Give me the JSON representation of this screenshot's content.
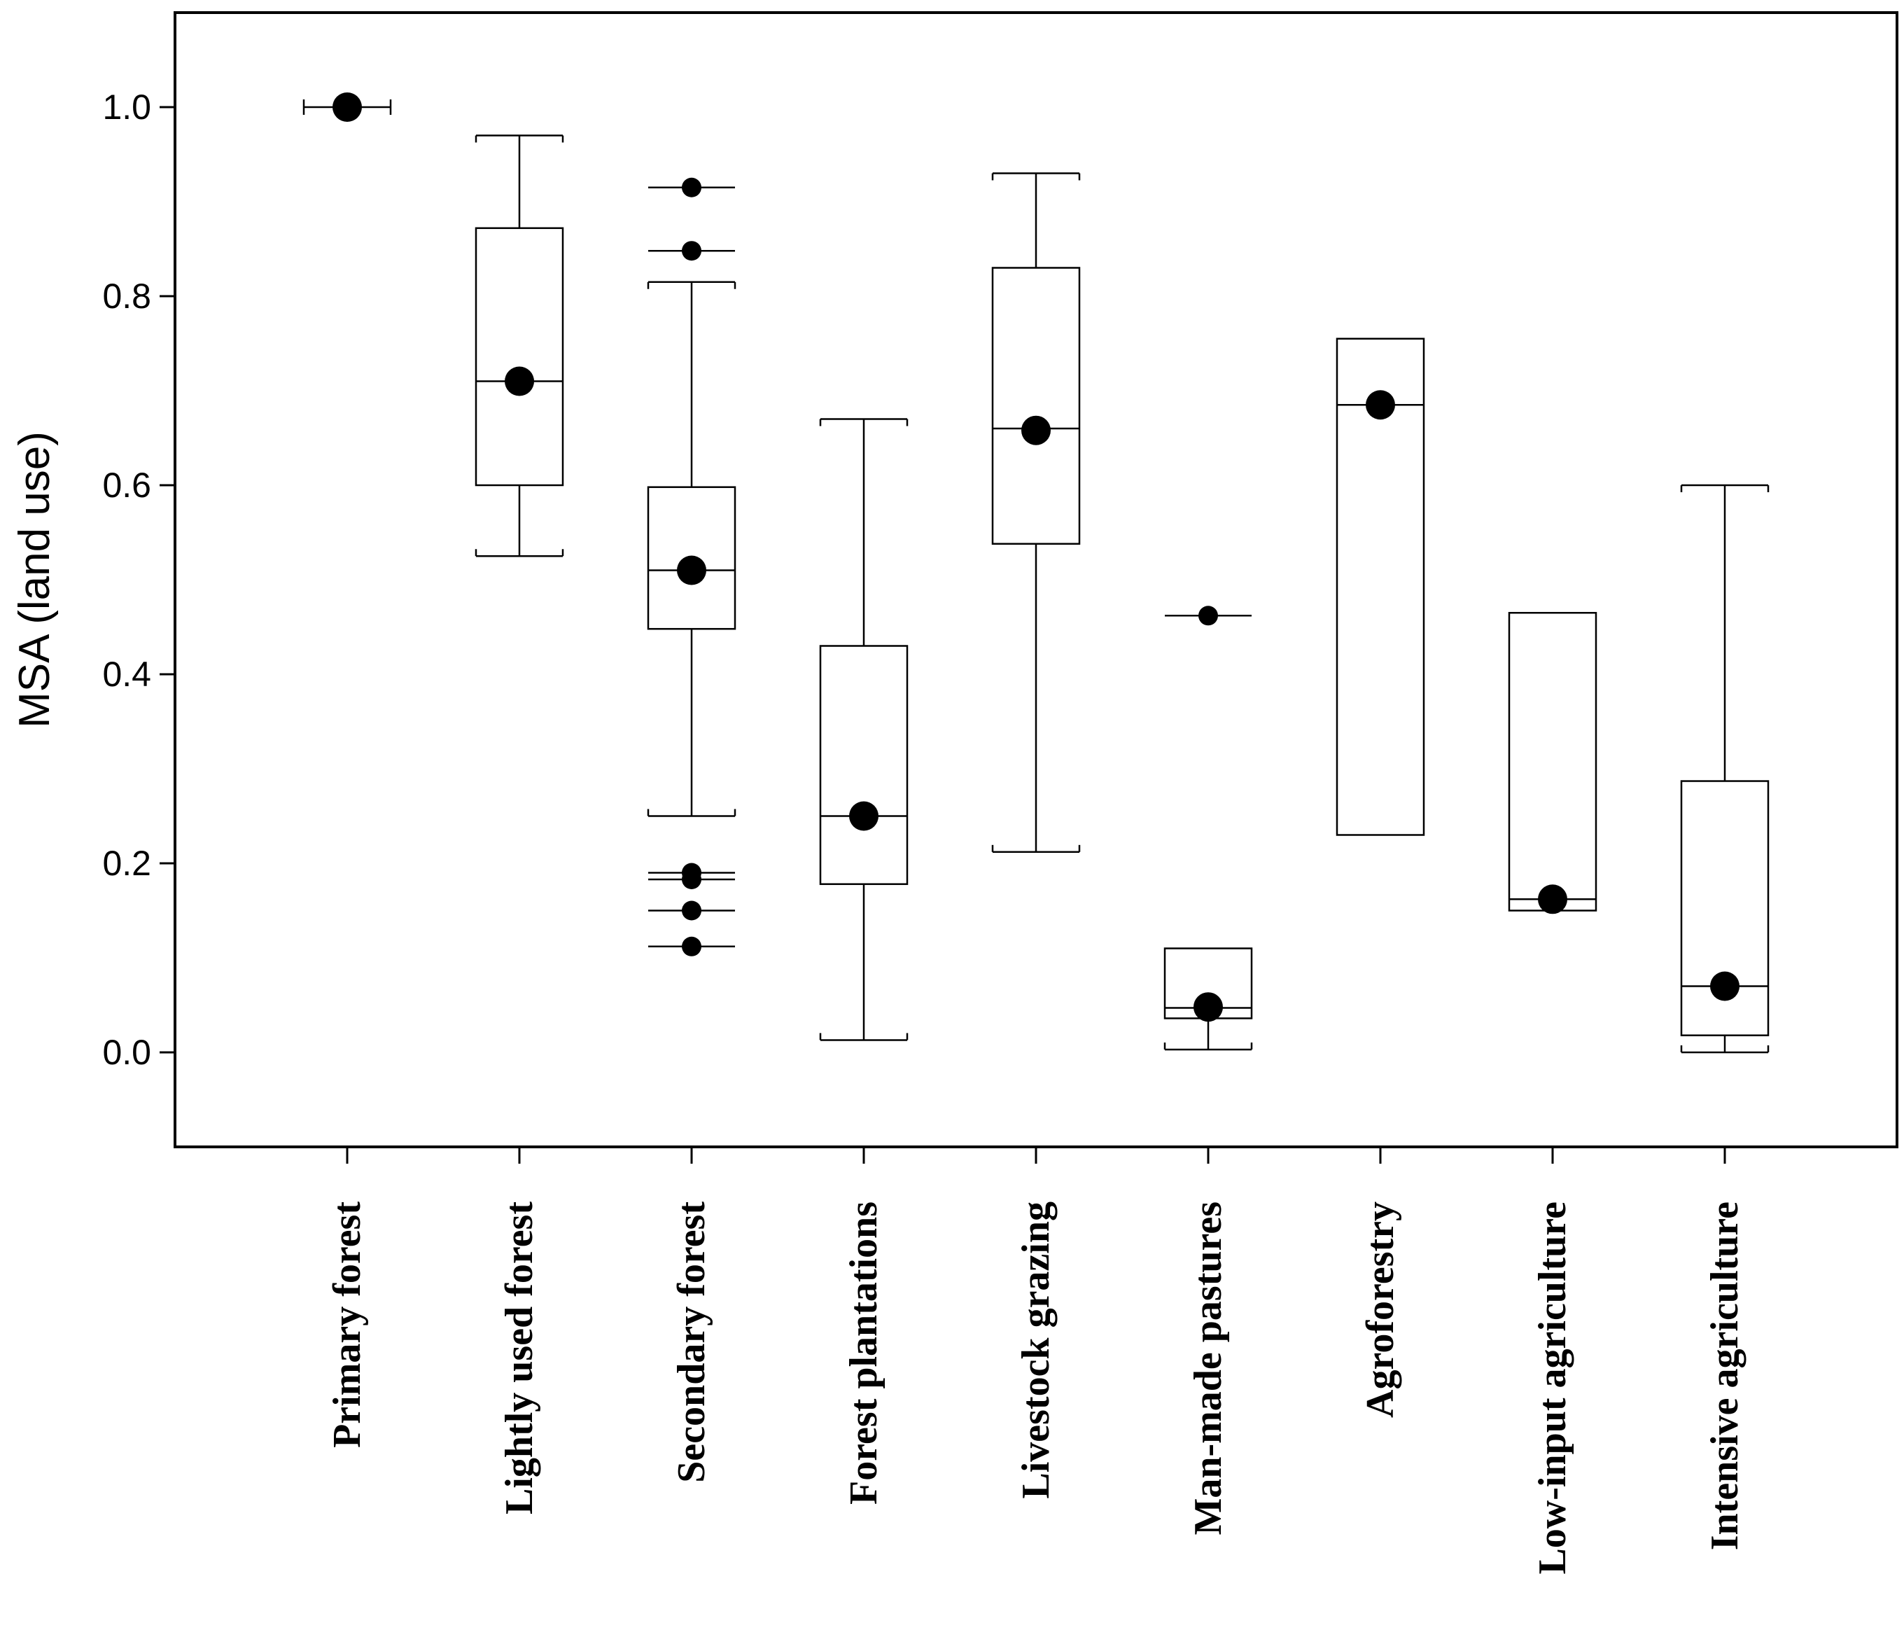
{
  "chart_data": {
    "type": "boxplot",
    "title": "",
    "xlabel": "",
    "ylabel": "MSA (land use)",
    "ylim": [
      -0.1,
      1.1
    ],
    "yticks": [
      0.0,
      0.2,
      0.4,
      0.6,
      0.8,
      1.0
    ],
    "ytick_labels": [
      "0.0",
      "0.2",
      "0.4",
      "0.6",
      "0.8",
      "1.0"
    ],
    "grid": false,
    "categories": [
      "Primary forest",
      "Lightly used forest",
      "Secondary forest",
      "Forest plantations",
      "Livestock grazing",
      "Man-made pastures",
      "Agroforestry",
      "Low-input agriculture",
      "Intensive agriculture"
    ],
    "boxes": [
      {
        "category": "Primary forest",
        "whisker_low": 1.0,
        "q1": 1.0,
        "median": 1.0,
        "q3": 1.0,
        "whisker_high": 1.0,
        "mean": 1.0,
        "outliers": []
      },
      {
        "category": "Lightly used forest",
        "whisker_low": 0.525,
        "q1": 0.6,
        "median": 0.71,
        "q3": 0.872,
        "whisker_high": 0.97,
        "mean": 0.71,
        "outliers": []
      },
      {
        "category": "Secondary forest",
        "whisker_low": 0.25,
        "q1": 0.448,
        "median": 0.51,
        "q3": 0.598,
        "whisker_high": 0.815,
        "mean": 0.51,
        "outliers": [
          0.915,
          0.848,
          0.19,
          0.183,
          0.15,
          0.112
        ]
      },
      {
        "category": "Forest plantations",
        "whisker_low": 0.013,
        "q1": 0.178,
        "median": 0.25,
        "q3": 0.43,
        "whisker_high": 0.67,
        "mean": 0.25,
        "outliers": []
      },
      {
        "category": "Livestock grazing",
        "whisker_low": 0.212,
        "q1": 0.538,
        "median": 0.66,
        "q3": 0.83,
        "whisker_high": 0.93,
        "mean": 0.658,
        "outliers": []
      },
      {
        "category": "Man-made pastures",
        "whisker_low": 0.003,
        "q1": 0.036,
        "median": 0.047,
        "q3": 0.11,
        "whisker_high": 0.11,
        "mean": 0.048,
        "outliers": [
          0.462
        ]
      },
      {
        "category": "Agroforestry",
        "whisker_low": 0.23,
        "q1": 0.23,
        "median": 0.685,
        "q3": 0.755,
        "whisker_high": 0.755,
        "mean": 0.685,
        "outliers": []
      },
      {
        "category": "Low-input agriculture",
        "whisker_low": 0.15,
        "q1": 0.15,
        "median": 0.162,
        "q3": 0.465,
        "whisker_high": 0.465,
        "mean": 0.162,
        "outliers": []
      },
      {
        "category": "Intensive agriculture",
        "whisker_low": 0.0,
        "q1": 0.018,
        "median": 0.07,
        "q3": 0.287,
        "whisker_high": 0.6,
        "mean": 0.07,
        "outliers": []
      }
    ]
  }
}
